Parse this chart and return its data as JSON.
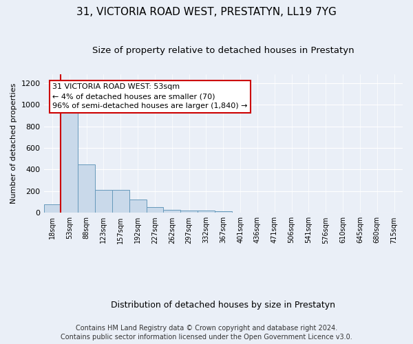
{
  "title": "31, VICTORIA ROAD WEST, PRESTATYN, LL19 7YG",
  "subtitle": "Size of property relative to detached houses in Prestatyn",
  "xlabel": "Distribution of detached houses by size in Prestatyn",
  "ylabel": "Number of detached properties",
  "bar_labels": [
    "18sqm",
    "53sqm",
    "88sqm",
    "123sqm",
    "157sqm",
    "192sqm",
    "227sqm",
    "262sqm",
    "297sqm",
    "332sqm",
    "367sqm",
    "401sqm",
    "436sqm",
    "471sqm",
    "506sqm",
    "541sqm",
    "576sqm",
    "610sqm",
    "645sqm",
    "680sqm",
    "715sqm"
  ],
  "bar_values": [
    80,
    980,
    450,
    215,
    215,
    120,
    50,
    25,
    22,
    18,
    12,
    0,
    0,
    0,
    0,
    0,
    0,
    0,
    0,
    0,
    0
  ],
  "bar_color": "#c9d9ea",
  "bar_edge_color": "#6699bb",
  "highlight_bar_index": 1,
  "highlight_color": "#cc0000",
  "annotation_line1": "31 VICTORIA ROAD WEST: 53sqm",
  "annotation_line2": "← 4% of detached houses are smaller (70)",
  "annotation_line3": "96% of semi-detached houses are larger (1,840) →",
  "annotation_box_color": "#ffffff",
  "annotation_box_edge_color": "#cc0000",
  "ylim": [
    0,
    1280
  ],
  "yticks": [
    0,
    200,
    400,
    600,
    800,
    1000,
    1200
  ],
  "background_color": "#eaeff7",
  "footer_line1": "Contains HM Land Registry data © Crown copyright and database right 2024.",
  "footer_line2": "Contains public sector information licensed under the Open Government Licence v3.0.",
  "title_fontsize": 11,
  "subtitle_fontsize": 9.5,
  "annotation_fontsize": 8,
  "footer_fontsize": 7,
  "ylabel_fontsize": 8,
  "xlabel_fontsize": 9
}
